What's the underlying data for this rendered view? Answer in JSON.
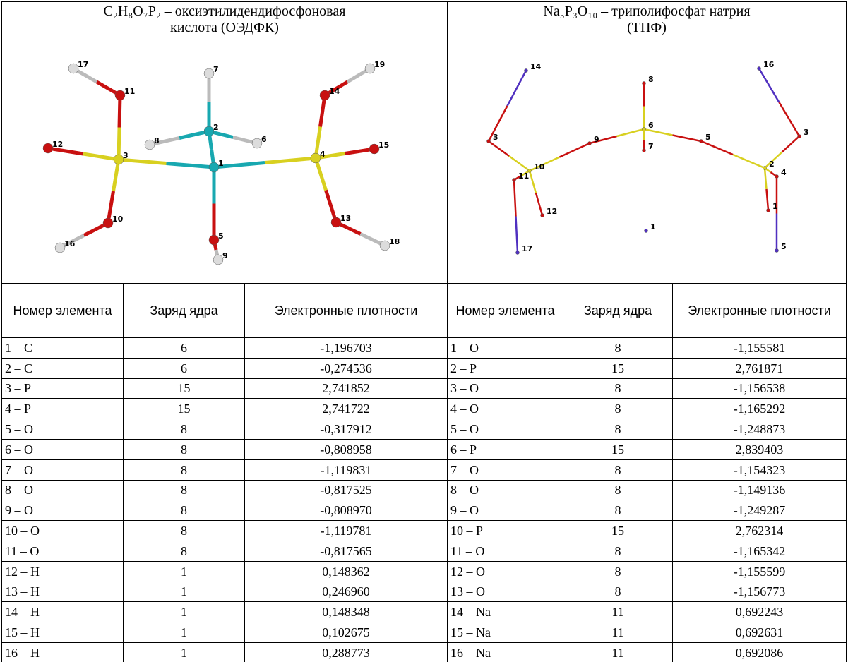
{
  "left": {
    "title": [
      "C₂H₈O₇P₂ – оксиэтилидендифосфоновая",
      "кислота (ОЭДФК)"
    ],
    "atom_labels": [
      "17",
      "11",
      "12",
      "3",
      "10",
      "16",
      "7",
      "2",
      "8",
      "6",
      "1",
      "5",
      "9",
      "14",
      "19",
      "15",
      "4",
      "13",
      "18"
    ]
  },
  "right": {
    "title": [
      "Na₅P₃O₁₀ – триполифосфат натрия",
      "(ТПФ)"
    ],
    "atom_labels": [
      "14",
      "16",
      "8",
      "6",
      "7",
      "9",
      "5",
      "3",
      "3",
      "10",
      "11",
      "12",
      "2",
      "4",
      "1",
      "1",
      "17",
      "5"
    ]
  },
  "table": {
    "headers": [
      "Номер элемента",
      "Заряд ядра",
      "Электронные плотности",
      "Номер элемента",
      "Заряд ядра",
      "Электронные плотности"
    ],
    "rows": [
      [
        "1 – C",
        6,
        "-1,196703",
        "1 – O",
        8,
        "-1,155581"
      ],
      [
        "2 – C",
        6,
        "-0,274536",
        "2 – P",
        15,
        "2,761871"
      ],
      [
        "3 – P",
        15,
        "2,741852",
        "3 – O",
        8,
        "-1,156538"
      ],
      [
        "4 – P",
        15,
        "2,741722",
        "4 – O",
        8,
        "-1,165292"
      ],
      [
        "5 – O",
        8,
        "-0,317912",
        "5 – O",
        8,
        "-1,248873"
      ],
      [
        "6 – O",
        8,
        "-0,808958",
        "6 – P",
        15,
        "2,839403"
      ],
      [
        "7 – O",
        8,
        "-1,119831",
        "7 – O",
        8,
        "-1,154323"
      ],
      [
        "8 – O",
        8,
        "-0,817525",
        "8 – O",
        8,
        "-1,149136"
      ],
      [
        "9 – O",
        8,
        "-0,808970",
        "9 – O",
        8,
        "-1,249287"
      ],
      [
        "10 – O",
        8,
        "-1,119781",
        "10 – P",
        15,
        "2,762314"
      ],
      [
        "11 – O",
        8,
        "-0,817565",
        "11 – O",
        8,
        "-1,165342"
      ],
      [
        "12 – H",
        1,
        "0,148362",
        "12 – O",
        8,
        "-1,155599"
      ],
      [
        "13 – H",
        1,
        "0,246960",
        "13 – O",
        8,
        "-1,156773"
      ],
      [
        "14 – H",
        1,
        "0,148348",
        "14 – Na",
        11,
        "0,692243"
      ],
      [
        "15 – H",
        1,
        "0,102675",
        "15 – Na",
        11,
        "0,692631"
      ],
      [
        "16 – H",
        1,
        "0,288773",
        "16 – Na",
        11,
        "0,692086"
      ]
    ]
  }
}
